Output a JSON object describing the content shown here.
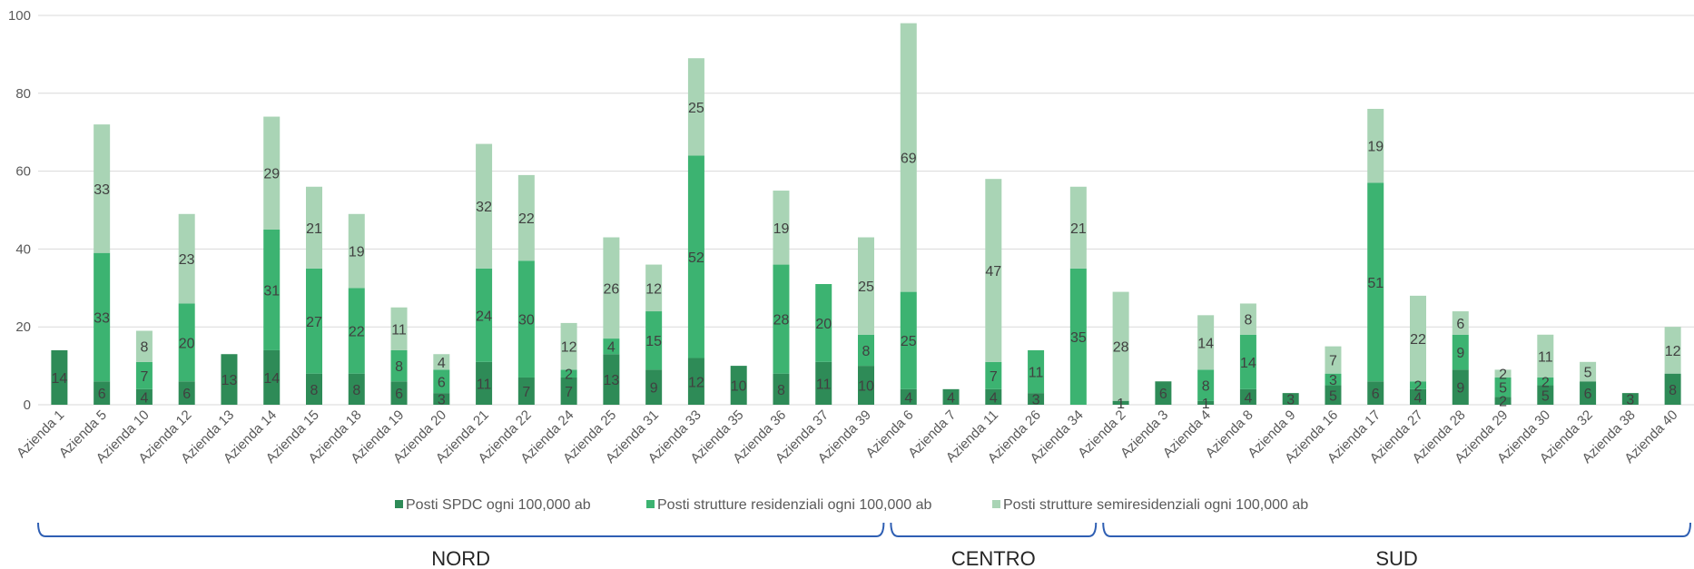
{
  "chart_data": {
    "type": "bar",
    "stacked": true,
    "title": "",
    "xlabel": "",
    "ylabel": "",
    "ylim": [
      0,
      100
    ],
    "yticks": [
      0,
      20,
      40,
      60,
      80,
      100
    ],
    "grid": true,
    "legend_position": "bottom",
    "categories": [
      "Azienda 1",
      "Azienda 5",
      "Azienda 10",
      "Azienda 12",
      "Azienda 13",
      "Azienda 14",
      "Azienda 15",
      "Azienda 18",
      "Azienda 19",
      "Azienda 20",
      "Azienda 21",
      "Azienda 22",
      "Azienda 24",
      "Azienda 25",
      "Azienda 31",
      "Azienda 33",
      "Azienda 35",
      "Azienda 36",
      "Azienda 37",
      "Azienda 39",
      "Azienda 6",
      "Azienda 7",
      "Azienda 11",
      "Azienda 26",
      "Azienda 34",
      "Azienda 2",
      "Azienda 3",
      "Azienda 4",
      "Azienda 8",
      "Azienda 9",
      "Azienda 16",
      "Azienda 17",
      "Azienda 27",
      "Azienda 28",
      "Azienda 29",
      "Azienda 30",
      "Azienda 32",
      "Azienda 38",
      "Azienda 40"
    ],
    "series": [
      {
        "name": "Posti SPDC ogni 100,000 ab",
        "color": "#2e8b57",
        "values": [
          14,
          6,
          4,
          6,
          13,
          14,
          8,
          8,
          6,
          3,
          11,
          7,
          7,
          13,
          9,
          12,
          10,
          8,
          11,
          10,
          4,
          4,
          4,
          3,
          0,
          1,
          6,
          1,
          4,
          3,
          5,
          6,
          4,
          9,
          2,
          5,
          6,
          3,
          8
        ]
      },
      {
        "name": "Posti strutture residenziali ogni 100,000 ab",
        "color": "#3cb371",
        "values": [
          0,
          33,
          7,
          20,
          0,
          31,
          27,
          22,
          8,
          6,
          24,
          30,
          2,
          4,
          15,
          52,
          0,
          28,
          20,
          8,
          25,
          0,
          7,
          11,
          35,
          0,
          0,
          8,
          14,
          0,
          3,
          51,
          2,
          9,
          5,
          2,
          0,
          0,
          0
        ]
      },
      {
        "name": "Posti strutture semiresidenziali ogni 100,000 ab",
        "color": "#a9d4b5",
        "values": [
          0,
          33,
          8,
          23,
          0,
          29,
          21,
          19,
          11,
          4,
          32,
          22,
          12,
          26,
          12,
          25,
          0,
          19,
          0,
          25,
          69,
          0,
          47,
          0,
          21,
          28,
          0,
          14,
          8,
          0,
          7,
          19,
          22,
          6,
          2,
          11,
          5,
          0,
          12
        ]
      }
    ],
    "groups": [
      {
        "label": "NORD",
        "start": 0,
        "end": 19
      },
      {
        "label": "CENTRO",
        "start": 20,
        "end": 24
      },
      {
        "label": "SUD",
        "start": 25,
        "end": 38
      }
    ]
  }
}
